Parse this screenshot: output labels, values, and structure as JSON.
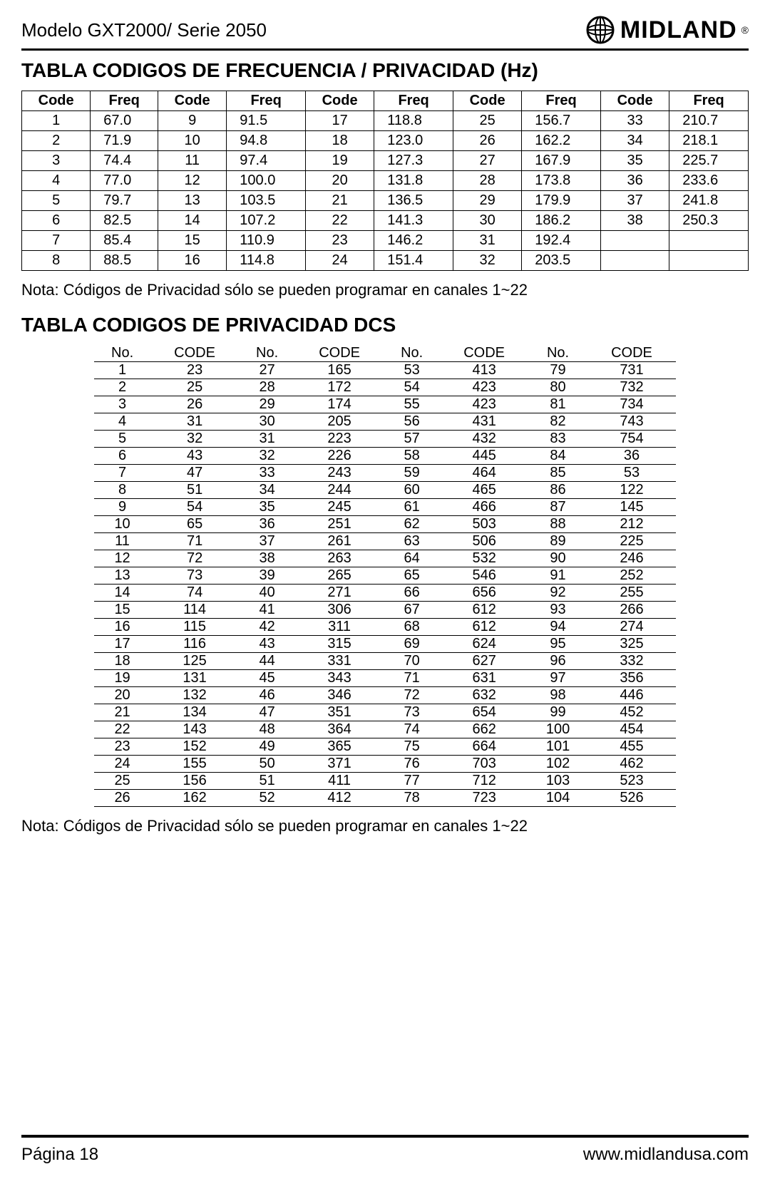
{
  "header": {
    "model": "Modelo GXT2000/ Serie 2050",
    "brand": "MIDLAND",
    "brand_reg": "®"
  },
  "section1": {
    "title": "TABLA CODIGOS DE FRECUENCIA / PRIVACIDAD (Hz)",
    "headers": [
      "Code",
      "Freq",
      "Code",
      "Freq",
      "Code",
      "Freq",
      "Code",
      "Freq",
      "Code",
      "Freq"
    ],
    "rows": [
      [
        "1",
        "67.0",
        "9",
        "91.5",
        "17",
        "118.8",
        "25",
        "156.7",
        "33",
        "210.7"
      ],
      [
        "2",
        "71.9",
        "10",
        "94.8",
        "18",
        "123.0",
        "26",
        "162.2",
        "34",
        "218.1"
      ],
      [
        "3",
        "74.4",
        "11",
        "97.4",
        "19",
        "127.3",
        "27",
        "167.9",
        "35",
        "225.7"
      ],
      [
        "4",
        "77.0",
        "12",
        "100.0",
        "20",
        "131.8",
        "28",
        "173.8",
        "36",
        "233.6"
      ],
      [
        "5",
        "79.7",
        "13",
        "103.5",
        "21",
        "136.5",
        "29",
        "179.9",
        "37",
        "241.8"
      ],
      [
        "6",
        "82.5",
        "14",
        "107.2",
        "22",
        "141.3",
        "30",
        "186.2",
        "38",
        "250.3"
      ],
      [
        "7",
        "85.4",
        "15",
        "110.9",
        "23",
        "146.2",
        "31",
        "192.4",
        "",
        ""
      ],
      [
        "8",
        "88.5",
        "16",
        "114.8",
        "24",
        "151.4",
        "32",
        "203.5",
        "",
        ""
      ]
    ],
    "note": "Nota:  Códigos de Privacidad sólo se pueden programar en canales 1~22"
  },
  "section2": {
    "title": "TABLA CODIGOS DE PRIVACIDAD DCS",
    "headers": [
      "No.",
      "CODE",
      "No.",
      "CODE",
      "No.",
      "CODE",
      "No.",
      "CODE"
    ],
    "rows": [
      [
        "1",
        "23",
        "27",
        "165",
        "53",
        "413",
        "79",
        "731"
      ],
      [
        "2",
        "25",
        "28",
        "172",
        "54",
        "423",
        "80",
        "732"
      ],
      [
        "3",
        "26",
        "29",
        "174",
        "55",
        "423",
        "81",
        "734"
      ],
      [
        "4",
        "31",
        "30",
        "205",
        "56",
        "431",
        "82",
        "743"
      ],
      [
        "5",
        "32",
        "31",
        "223",
        "57",
        "432",
        "83",
        "754"
      ],
      [
        "6",
        "43",
        "32",
        "226",
        "58",
        "445",
        "84",
        "36"
      ],
      [
        "7",
        "47",
        "33",
        "243",
        "59",
        "464",
        "85",
        "53"
      ],
      [
        "8",
        "51",
        "34",
        "244",
        "60",
        "465",
        "86",
        "122"
      ],
      [
        "9",
        "54",
        "35",
        "245",
        "61",
        "466",
        "87",
        "145"
      ],
      [
        "10",
        "65",
        "36",
        "251",
        "62",
        "503",
        "88",
        "212"
      ],
      [
        "11",
        "71",
        "37",
        "261",
        "63",
        "506",
        "89",
        "225"
      ],
      [
        "12",
        "72",
        "38",
        "263",
        "64",
        "532",
        "90",
        "246"
      ],
      [
        "13",
        "73",
        "39",
        "265",
        "65",
        "546",
        "91",
        "252"
      ],
      [
        "14",
        "74",
        "40",
        "271",
        "66",
        "656",
        "92",
        "255"
      ],
      [
        "15",
        "114",
        "41",
        "306",
        "67",
        "612",
        "93",
        "266"
      ],
      [
        "16",
        "115",
        "42",
        "311",
        "68",
        "612",
        "94",
        "274"
      ],
      [
        "17",
        "116",
        "43",
        "315",
        "69",
        "624",
        "95",
        "325"
      ],
      [
        "18",
        "125",
        "44",
        "331",
        "70",
        "627",
        "96",
        "332"
      ],
      [
        "19",
        "131",
        "45",
        "343",
        "71",
        "631",
        "97",
        "356"
      ],
      [
        "20",
        "132",
        "46",
        "346",
        "72",
        "632",
        "98",
        "446"
      ],
      [
        "21",
        "134",
        "47",
        "351",
        "73",
        "654",
        "99",
        "452"
      ],
      [
        "22",
        "143",
        "48",
        "364",
        "74",
        "662",
        "100",
        "454"
      ],
      [
        "23",
        "152",
        "49",
        "365",
        "75",
        "664",
        "101",
        "455"
      ],
      [
        "24",
        "155",
        "50",
        "371",
        "76",
        "703",
        "102",
        "462"
      ],
      [
        "25",
        "156",
        "51",
        "411",
        "77",
        "712",
        "103",
        "523"
      ],
      [
        "26",
        "162",
        "52",
        "412",
        "78",
        "723",
        "104",
        "526"
      ]
    ],
    "note": "Nota:  Códigos de Privacidad sólo se pueden programar en canales 1~22"
  },
  "footer": {
    "page": "Página 18",
    "url": "www.midlandusa.com"
  },
  "style": {
    "text_color": "#000000",
    "bg_color": "#ffffff",
    "border_color": "#000000",
    "header_fontsize": 26,
    "title_fontsize": 28,
    "cell_fontsize": 20,
    "note_fontsize": 22,
    "footer_fontsize": 24,
    "brand_fontsize": 34
  }
}
